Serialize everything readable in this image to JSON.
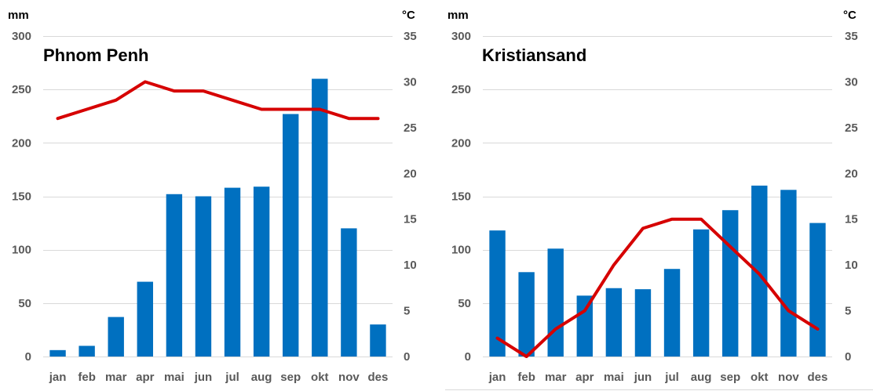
{
  "chart_data": [
    {
      "type": "bar",
      "title": "Phnom Penh",
      "left_unit": "mm",
      "right_unit": "°C",
      "categories": [
        "jan",
        "feb",
        "mar",
        "apr",
        "mai",
        "jun",
        "jul",
        "aug",
        "sep",
        "okt",
        "nov",
        "des"
      ],
      "series": [
        {
          "kind": "bar",
          "axis": "left",
          "values": [
            6,
            10,
            37,
            70,
            152,
            150,
            158,
            159,
            227,
            260,
            120,
            30
          ]
        },
        {
          "kind": "line",
          "axis": "right",
          "values": [
            26,
            27,
            28,
            30,
            29,
            29,
            28,
            27,
            27,
            27,
            26,
            26
          ]
        }
      ],
      "left_ticks": [
        0,
        50,
        100,
        150,
        200,
        250,
        300
      ],
      "right_ticks": [
        0,
        5,
        10,
        15,
        20,
        25,
        30,
        35
      ],
      "ylim_left": [
        0,
        300
      ],
      "ylim_right": [
        0,
        35
      ],
      "grid": true,
      "legend": "none"
    },
    {
      "type": "bar",
      "title": "Kristiansand",
      "left_unit": "mm",
      "right_unit": "°C",
      "categories": [
        "jan",
        "feb",
        "mar",
        "apr",
        "mai",
        "jun",
        "jul",
        "aug",
        "sep",
        "okt",
        "nov",
        "des"
      ],
      "series": [
        {
          "kind": "bar",
          "axis": "left",
          "values": [
            118,
            79,
            101,
            57,
            64,
            63,
            82,
            119,
            137,
            160,
            156,
            125
          ]
        },
        {
          "kind": "line",
          "axis": "right",
          "values": [
            2,
            0,
            3,
            5,
            10,
            14,
            15,
            15,
            12,
            9,
            5,
            3
          ]
        }
      ],
      "left_ticks": [
        0,
        50,
        100,
        150,
        200,
        250,
        300
      ],
      "right_ticks": [
        0,
        5,
        10,
        15,
        20,
        25,
        30,
        35
      ],
      "ylim_left": [
        0,
        300
      ],
      "ylim_right": [
        0,
        35
      ],
      "grid": true,
      "legend": "none"
    }
  ],
  "colors": {
    "bar": "#0070c0",
    "line": "#d60000",
    "grid": "#d9d9d9",
    "tick_text": "#595959",
    "title_text": "#000000"
  }
}
